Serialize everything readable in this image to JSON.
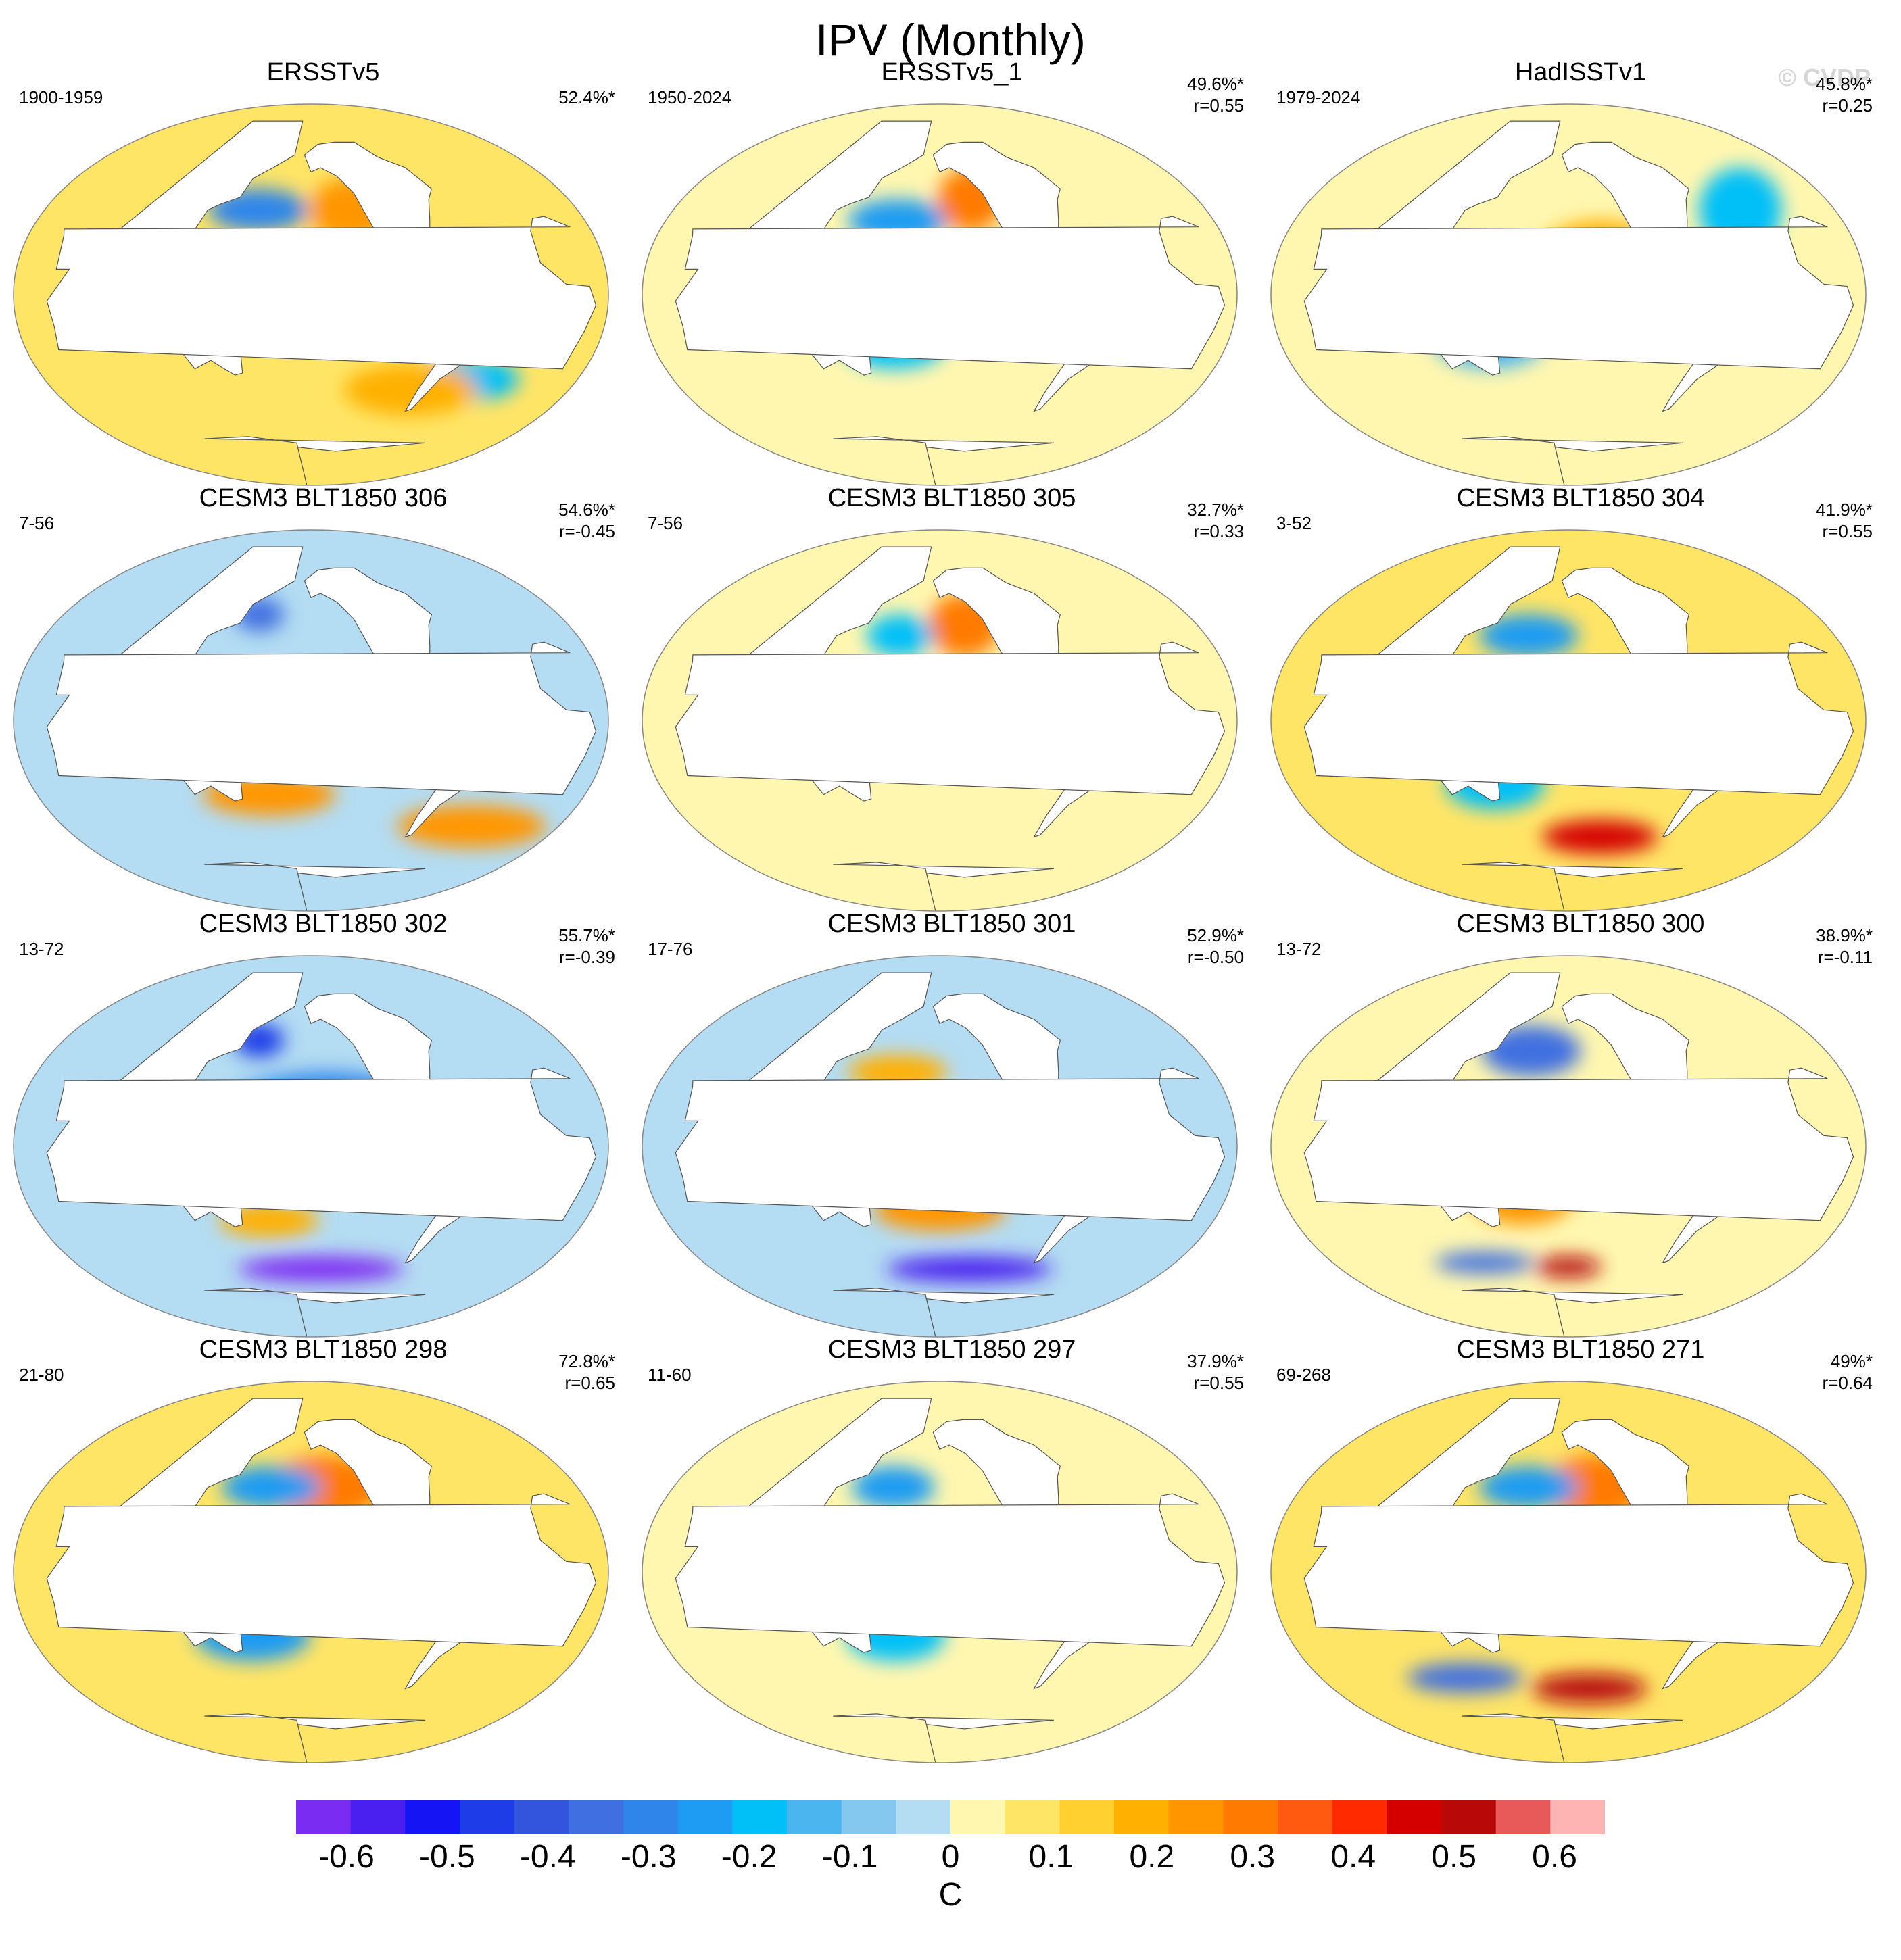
{
  "title": "IPV (Monthly)",
  "watermark": "© CVDP",
  "panels": [
    {
      "title": "ERSSTv5",
      "years": "1900-1959",
      "pct": "52.4%*",
      "r": "",
      "tone": "warm-tropics",
      "blobs": [
        {
          "c": 0.22,
          "lon": -170,
          "lat": 5,
          "rx": 70,
          "ry": 18
        },
        {
          "c": -0.25,
          "lon": 160,
          "lat": 40,
          "rx": 30,
          "ry": 10
        },
        {
          "c": -0.15,
          "lon": -40,
          "lat": -40,
          "rx": 30,
          "ry": 10
        },
        {
          "c": 0.2,
          "lon": -130,
          "lat": 40,
          "rx": 25,
          "ry": 15
        },
        {
          "c": 0.18,
          "lon": -80,
          "lat": -45,
          "rx": 40,
          "ry": 12
        }
      ]
    },
    {
      "title": "ERSSTv5_1",
      "years": "1950-2024",
      "pct": "49.6%*",
      "r": "r=0.55",
      "tone": "mixed",
      "blobs": [
        {
          "c": 0.2,
          "lon": -140,
          "lat": 10,
          "rx": 50,
          "ry": 15
        },
        {
          "c": -0.2,
          "lon": 170,
          "lat": 35,
          "rx": 30,
          "ry": 10
        },
        {
          "c": -0.18,
          "lon": 170,
          "lat": -25,
          "rx": 30,
          "ry": 10
        },
        {
          "c": 0.25,
          "lon": -135,
          "lat": 45,
          "rx": 20,
          "ry": 15
        }
      ]
    },
    {
      "title": "HadISSTv1",
      "years": "1979-2024",
      "pct": "45.8%*",
      "r": "r=0.25",
      "tone": "mixed",
      "blobs": [
        {
          "c": 0.18,
          "lon": -140,
          "lat": 15,
          "rx": 40,
          "ry": 20
        },
        {
          "c": -0.15,
          "lon": -30,
          "lat": 40,
          "rx": 25,
          "ry": 20
        },
        {
          "c": -0.12,
          "lon": 150,
          "lat": -20,
          "rx": 35,
          "ry": 15
        }
      ]
    },
    {
      "title": "CESM3 BLT1850 306",
      "years": "7-56",
      "pct": "54.6%*",
      "r": "r=-0.45",
      "tone": "cool-tropics",
      "blobs": [
        {
          "c": -0.28,
          "lon": -150,
          "lat": 0,
          "rx": 70,
          "ry": 14
        },
        {
          "c": 0.2,
          "lon": 170,
          "lat": -35,
          "rx": 40,
          "ry": 10
        },
        {
          "c": 0.22,
          "lon": -20,
          "lat": -50,
          "rx": 45,
          "ry": 10
        },
        {
          "c": -0.35,
          "lon": 155,
          "lat": 50,
          "rx": 15,
          "ry": 8
        }
      ]
    },
    {
      "title": "CESM3 BLT1850 305",
      "years": "7-56",
      "pct": "32.7%*",
      "r": "r=0.33",
      "tone": "mixed",
      "blobs": [
        {
          "c": 0.28,
          "lon": -140,
          "lat": 45,
          "rx": 22,
          "ry": 15
        },
        {
          "c": -0.15,
          "lon": 170,
          "lat": 40,
          "rx": 20,
          "ry": 10
        },
        {
          "c": 0.15,
          "lon": -150,
          "lat": 10,
          "rx": 50,
          "ry": 12
        }
      ]
    },
    {
      "title": "CESM3 BLT1850 304",
      "years": "3-52",
      "pct": "41.9%*",
      "r": "r=0.55",
      "tone": "warm-tropics",
      "blobs": [
        {
          "c": 0.3,
          "lon": -140,
          "lat": 0,
          "rx": 70,
          "ry": 15
        },
        {
          "c": -0.2,
          "lon": 170,
          "lat": 40,
          "rx": 30,
          "ry": 10
        },
        {
          "c": -0.18,
          "lon": 150,
          "lat": -30,
          "rx": 30,
          "ry": 12
        },
        {
          "c": 0.42,
          "lon": -130,
          "lat": -55,
          "rx": 35,
          "ry": 8
        }
      ]
    },
    {
      "title": "CESM3 BLT1850 302",
      "years": "13-72",
      "pct": "55.7%*",
      "r": "r=-0.39",
      "tone": "cool-tropics",
      "blobs": [
        {
          "c": -0.25,
          "lon": -150,
          "lat": 10,
          "rx": 70,
          "ry": 25
        },
        {
          "c": -0.55,
          "lon": -150,
          "lat": -58,
          "rx": 50,
          "ry": 6
        },
        {
          "c": 0.15,
          "lon": 170,
          "lat": -35,
          "rx": 30,
          "ry": 8
        },
        {
          "c": -0.4,
          "lon": 155,
          "lat": 50,
          "rx": 15,
          "ry": 8
        }
      ]
    },
    {
      "title": "CESM3 BLT1850 301",
      "years": "17-76",
      "pct": "52.9%*",
      "r": "r=-0.50",
      "tone": "cool-tropics",
      "blobs": [
        {
          "c": -0.32,
          "lon": -150,
          "lat": 0,
          "rx": 70,
          "ry": 14
        },
        {
          "c": 0.22,
          "lon": -160,
          "lat": -30,
          "rx": 40,
          "ry": 10
        },
        {
          "c": -0.5,
          "lon": -130,
          "lat": -58,
          "rx": 50,
          "ry": 6
        },
        {
          "c": 0.18,
          "lon": 170,
          "lat": 35,
          "rx": 30,
          "ry": 8
        }
      ]
    },
    {
      "title": "CESM3 BLT1850 300",
      "years": "13-72",
      "pct": "38.9%*",
      "r": "r=-0.11",
      "tone": "mixed",
      "blobs": [
        {
          "c": -0.3,
          "lon": 170,
          "lat": 45,
          "rx": 30,
          "ry": 12
        },
        {
          "c": 0.2,
          "lon": 170,
          "lat": -25,
          "rx": 30,
          "ry": 12
        },
        {
          "c": 0.45,
          "lon": -160,
          "lat": -57,
          "rx": 20,
          "ry": 5
        },
        {
          "c": -0.3,
          "lon": 120,
          "lat": -55,
          "rx": 30,
          "ry": 5
        }
      ]
    },
    {
      "title": "CESM3 BLT1850 298",
      "years": "21-80",
      "pct": "72.8%*",
      "r": "r=0.65",
      "tone": "warm-tropics",
      "blobs": [
        {
          "c": 0.45,
          "lon": -120,
          "lat": 0,
          "rx": 60,
          "ry": 14
        },
        {
          "c": 0.3,
          "lon": -150,
          "lat": 40,
          "rx": 35,
          "ry": 15
        },
        {
          "c": -0.22,
          "lon": 170,
          "lat": 40,
          "rx": 30,
          "ry": 10
        },
        {
          "c": -0.2,
          "lon": 160,
          "lat": -30,
          "rx": 35,
          "ry": 12
        }
      ]
    },
    {
      "title": "CESM3 BLT1850 297",
      "years": "11-60",
      "pct": "37.9%*",
      "r": "r=0.55",
      "tone": "mixed",
      "blobs": [
        {
          "c": 0.22,
          "lon": -150,
          "lat": 5,
          "rx": 60,
          "ry": 14
        },
        {
          "c": -0.2,
          "lon": 165,
          "lat": 40,
          "rx": 25,
          "ry": 10
        },
        {
          "c": -0.15,
          "lon": 170,
          "lat": -30,
          "rx": 30,
          "ry": 12
        }
      ]
    },
    {
      "title": "CESM3 BLT1850 271",
      "years": "69-268",
      "pct": "49%*",
      "r": "r=0.64",
      "tone": "warm-tropics",
      "blobs": [
        {
          "c": 0.35,
          "lon": -130,
          "lat": 0,
          "rx": 65,
          "ry": 14
        },
        {
          "c": 0.3,
          "lon": -140,
          "lat": 40,
          "rx": 30,
          "ry": 15
        },
        {
          "c": -0.22,
          "lon": 170,
          "lat": 40,
          "rx": 30,
          "ry": 10
        },
        {
          "c": 0.48,
          "lon": -140,
          "lat": -55,
          "rx": 35,
          "ry": 7
        },
        {
          "c": -0.3,
          "lon": 110,
          "lat": -50,
          "rx": 35,
          "ry": 7
        }
      ]
    }
  ],
  "colorbar": {
    "labels": [
      "-0.6",
      "-0.5",
      "-0.4",
      "-0.3",
      "-0.2",
      "-0.1",
      "0",
      "0.1",
      "0.2",
      "0.3",
      "0.4",
      "0.5",
      "0.6"
    ],
    "units": "C",
    "colors": [
      "#7b2cf2",
      "#4a20f0",
      "#1414f5",
      "#1e3ce8",
      "#3355dd",
      "#3f6fe0",
      "#2f85ea",
      "#1e9bf2",
      "#00c0f8",
      "#4ab5ef",
      "#84c8f0",
      "#b4dcf2",
      "#fff7b0",
      "#ffe566",
      "#ffd030",
      "#ffb000",
      "#ff9600",
      "#ff7a00",
      "#ff5a10",
      "#ff2a00",
      "#d40000",
      "#b80808",
      "#e85a5a",
      "#ffb4b4"
    ]
  }
}
